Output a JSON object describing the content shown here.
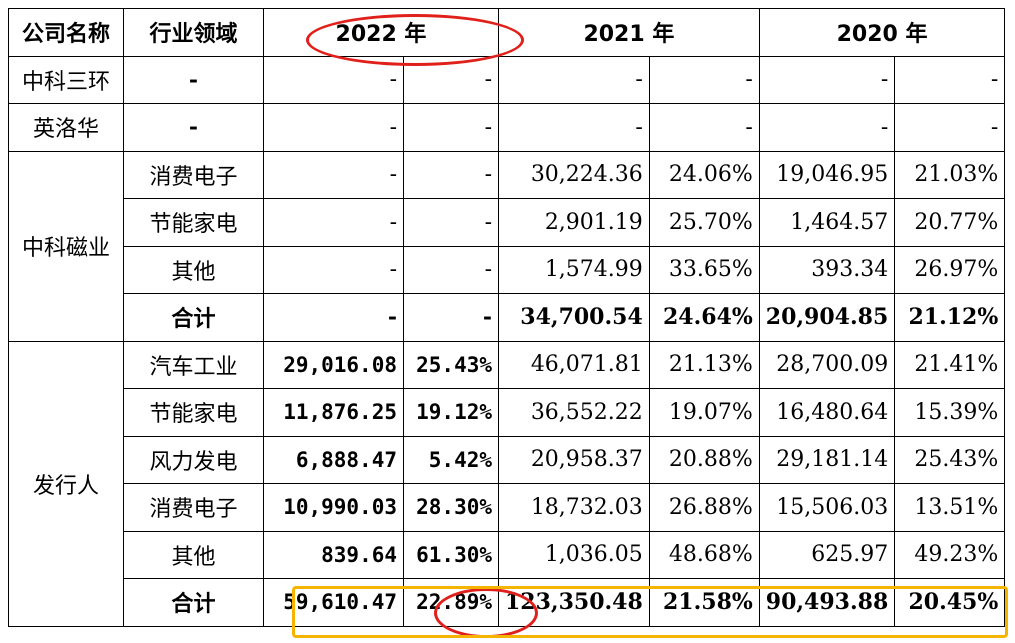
{
  "headers": {
    "company": "公司名称",
    "industry": "行业领域",
    "year2022": "2022 年",
    "year2021": "2021 年",
    "year2020": "2020 年"
  },
  "rows": [
    {
      "company": "中科三环",
      "segment": "-",
      "c1": "-",
      "c2": "-",
      "c3": "-",
      "c4": "-",
      "c5": "-",
      "c6": "-"
    },
    {
      "company": "英洛华",
      "segment": "-",
      "c1": "-",
      "c2": "-",
      "c3": "-",
      "c4": "-",
      "c5": "-",
      "c6": "-"
    },
    {
      "company": "中科磁业",
      "segment": "消费电子",
      "c1": "-",
      "c2": "-",
      "c3": "30,224.36",
      "c4": "24.06%",
      "c5": "19,046.95",
      "c6": "21.03%"
    },
    {
      "segment": "节能家电",
      "c1": "-",
      "c2": "-",
      "c3": "2,901.19",
      "c4": "25.70%",
      "c5": "1,464.57",
      "c6": "20.77%"
    },
    {
      "segment": "其他",
      "c1": "-",
      "c2": "-",
      "c3": "1,574.99",
      "c4": "33.65%",
      "c5": "393.34",
      "c6": "26.97%"
    },
    {
      "segment": "合计",
      "c1": "-",
      "c2": "-",
      "c3": "34,700.54",
      "c4": "24.64%",
      "c5": "20,904.85",
      "c6": "21.12%"
    },
    {
      "company": "发行人",
      "segment": "汽车工业",
      "c1": "29,016.08",
      "c2": "25.43%",
      "c3": "46,071.81",
      "c4": "21.13%",
      "c5": "28,700.09",
      "c6": "21.41%"
    },
    {
      "segment": "节能家电",
      "c1": "11,876.25",
      "c2": "19.12%",
      "c3": "36,552.22",
      "c4": "19.07%",
      "c5": "16,480.64",
      "c6": "15.39%"
    },
    {
      "segment": "风力发电",
      "c1": "6,888.47",
      "c2": "5.42%",
      "c3": "20,958.37",
      "c4": "20.88%",
      "c5": "29,181.14",
      "c6": "25.43%"
    },
    {
      "segment": "消费电子",
      "c1": "10,990.03",
      "c2": "28.30%",
      "c3": "18,732.03",
      "c4": "26.88%",
      "c5": "15,506.03",
      "c6": "13.51%"
    },
    {
      "segment": "其他",
      "c1": "839.64",
      "c2": "61.30%",
      "c3": "1,036.05",
      "c4": "48.68%",
      "c5": "625.97",
      "c6": "49.23%"
    },
    {
      "segment": "合计",
      "c1": "59,610.47",
      "c2": "22.89%",
      "c3": "123,350.48",
      "c4": "21.58%",
      "c5": "90,493.88",
      "c6": "20.45%"
    }
  ],
  "colors": {
    "highlight_red": "#e0201b",
    "highlight_orange": "#f4b400"
  }
}
